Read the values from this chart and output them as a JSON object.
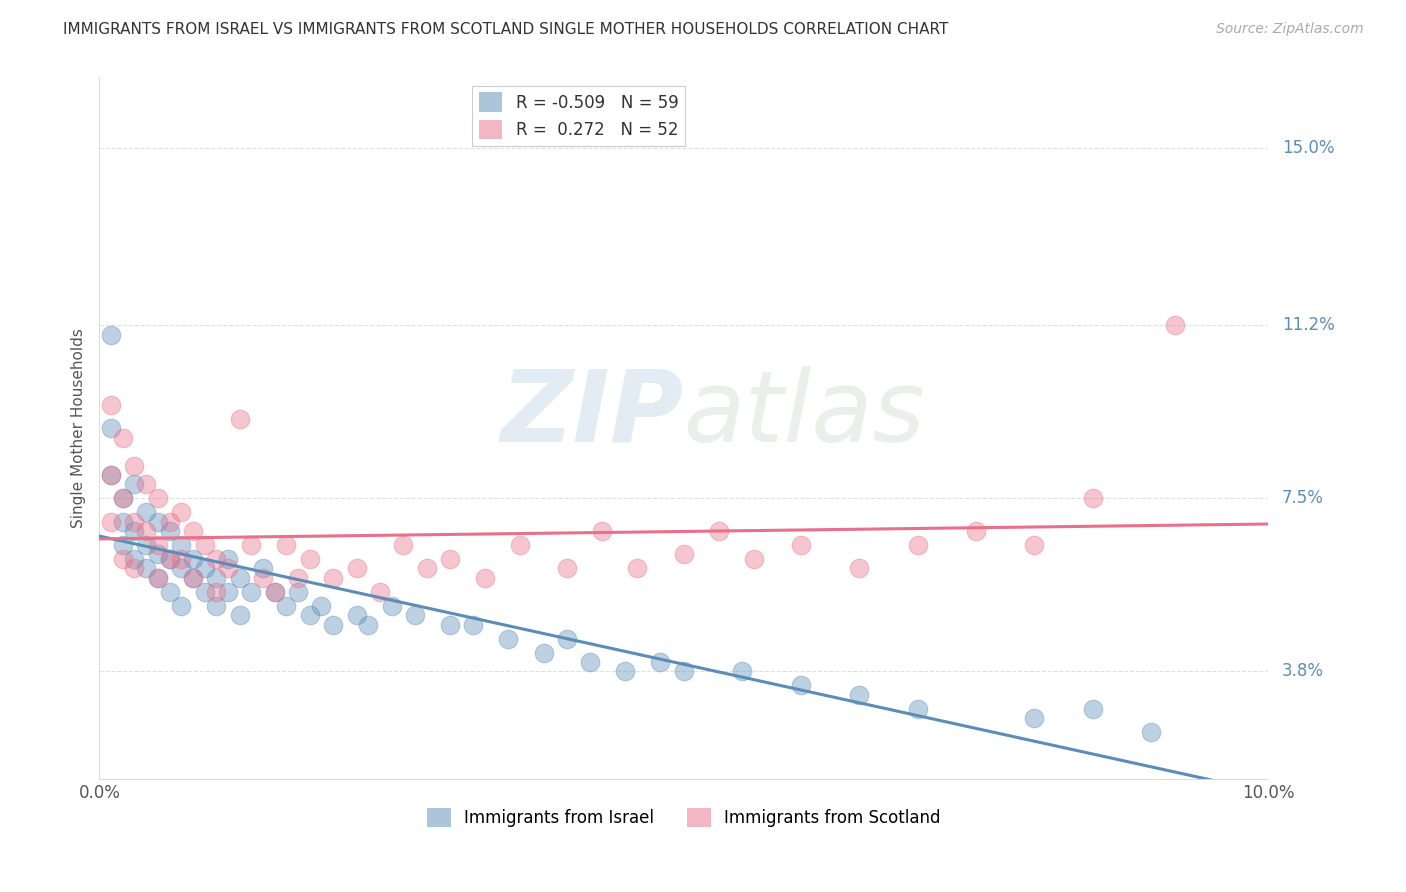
{
  "title": "IMMIGRANTS FROM ISRAEL VS IMMIGRANTS FROM SCOTLAND SINGLE MOTHER HOUSEHOLDS CORRELATION CHART",
  "source": "Source: ZipAtlas.com",
  "ylabel": "Single Mother Households",
  "ytick_labels": [
    "3.8%",
    "7.5%",
    "11.2%",
    "15.0%"
  ],
  "ytick_values": [
    0.038,
    0.075,
    0.112,
    0.15
  ],
  "xlim": [
    0.0,
    0.1
  ],
  "ylim": [
    0.015,
    0.165
  ],
  "legend_labels": [
    "Immigrants from Israel",
    "Immigrants from Scotland"
  ],
  "israel_color": "#5b8db8",
  "scotland_color": "#e8708a",
  "israel_R": -0.509,
  "israel_N": 59,
  "scotland_R": 0.272,
  "scotland_N": 52,
  "watermark": "ZIPatlas",
  "background_color": "#ffffff",
  "grid_color": "#e0e0e0",
  "israel_scatter": [
    [
      0.001,
      0.11
    ],
    [
      0.001,
      0.09
    ],
    [
      0.001,
      0.08
    ],
    [
      0.002,
      0.075
    ],
    [
      0.002,
      0.07
    ],
    [
      0.002,
      0.065
    ],
    [
      0.003,
      0.078
    ],
    [
      0.003,
      0.068
    ],
    [
      0.003,
      0.062
    ],
    [
      0.004,
      0.072
    ],
    [
      0.004,
      0.065
    ],
    [
      0.004,
      0.06
    ],
    [
      0.005,
      0.07
    ],
    [
      0.005,
      0.063
    ],
    [
      0.005,
      0.058
    ],
    [
      0.006,
      0.068
    ],
    [
      0.006,
      0.062
    ],
    [
      0.006,
      0.055
    ],
    [
      0.007,
      0.065
    ],
    [
      0.007,
      0.06
    ],
    [
      0.007,
      0.052
    ],
    [
      0.008,
      0.062
    ],
    [
      0.008,
      0.058
    ],
    [
      0.009,
      0.06
    ],
    [
      0.009,
      0.055
    ],
    [
      0.01,
      0.058
    ],
    [
      0.01,
      0.052
    ],
    [
      0.011,
      0.062
    ],
    [
      0.011,
      0.055
    ],
    [
      0.012,
      0.058
    ],
    [
      0.012,
      0.05
    ],
    [
      0.013,
      0.055
    ],
    [
      0.014,
      0.06
    ],
    [
      0.015,
      0.055
    ],
    [
      0.016,
      0.052
    ],
    [
      0.017,
      0.055
    ],
    [
      0.018,
      0.05
    ],
    [
      0.019,
      0.052
    ],
    [
      0.02,
      0.048
    ],
    [
      0.022,
      0.05
    ],
    [
      0.023,
      0.048
    ],
    [
      0.025,
      0.052
    ],
    [
      0.027,
      0.05
    ],
    [
      0.03,
      0.048
    ],
    [
      0.032,
      0.048
    ],
    [
      0.035,
      0.045
    ],
    [
      0.038,
      0.042
    ],
    [
      0.04,
      0.045
    ],
    [
      0.042,
      0.04
    ],
    [
      0.045,
      0.038
    ],
    [
      0.048,
      0.04
    ],
    [
      0.05,
      0.038
    ],
    [
      0.055,
      0.038
    ],
    [
      0.06,
      0.035
    ],
    [
      0.065,
      0.033
    ],
    [
      0.07,
      0.03
    ],
    [
      0.08,
      0.028
    ],
    [
      0.085,
      0.03
    ],
    [
      0.09,
      0.025
    ]
  ],
  "scotland_scatter": [
    [
      0.001,
      0.095
    ],
    [
      0.001,
      0.08
    ],
    [
      0.001,
      0.07
    ],
    [
      0.002,
      0.088
    ],
    [
      0.002,
      0.075
    ],
    [
      0.002,
      0.062
    ],
    [
      0.003,
      0.082
    ],
    [
      0.003,
      0.07
    ],
    [
      0.003,
      0.06
    ],
    [
      0.004,
      0.078
    ],
    [
      0.004,
      0.068
    ],
    [
      0.005,
      0.075
    ],
    [
      0.005,
      0.065
    ],
    [
      0.005,
      0.058
    ],
    [
      0.006,
      0.07
    ],
    [
      0.006,
      0.062
    ],
    [
      0.007,
      0.072
    ],
    [
      0.007,
      0.062
    ],
    [
      0.008,
      0.068
    ],
    [
      0.008,
      0.058
    ],
    [
      0.009,
      0.065
    ],
    [
      0.01,
      0.062
    ],
    [
      0.01,
      0.055
    ],
    [
      0.011,
      0.06
    ],
    [
      0.012,
      0.092
    ],
    [
      0.013,
      0.065
    ],
    [
      0.014,
      0.058
    ],
    [
      0.015,
      0.055
    ],
    [
      0.016,
      0.065
    ],
    [
      0.017,
      0.058
    ],
    [
      0.018,
      0.062
    ],
    [
      0.02,
      0.058
    ],
    [
      0.022,
      0.06
    ],
    [
      0.024,
      0.055
    ],
    [
      0.026,
      0.065
    ],
    [
      0.028,
      0.06
    ],
    [
      0.03,
      0.062
    ],
    [
      0.033,
      0.058
    ],
    [
      0.036,
      0.065
    ],
    [
      0.04,
      0.06
    ],
    [
      0.043,
      0.068
    ],
    [
      0.046,
      0.06
    ],
    [
      0.05,
      0.063
    ],
    [
      0.053,
      0.068
    ],
    [
      0.056,
      0.062
    ],
    [
      0.06,
      0.065
    ],
    [
      0.065,
      0.06
    ],
    [
      0.07,
      0.065
    ],
    [
      0.075,
      0.068
    ],
    [
      0.08,
      0.065
    ],
    [
      0.085,
      0.075
    ],
    [
      0.092,
      0.112
    ]
  ]
}
